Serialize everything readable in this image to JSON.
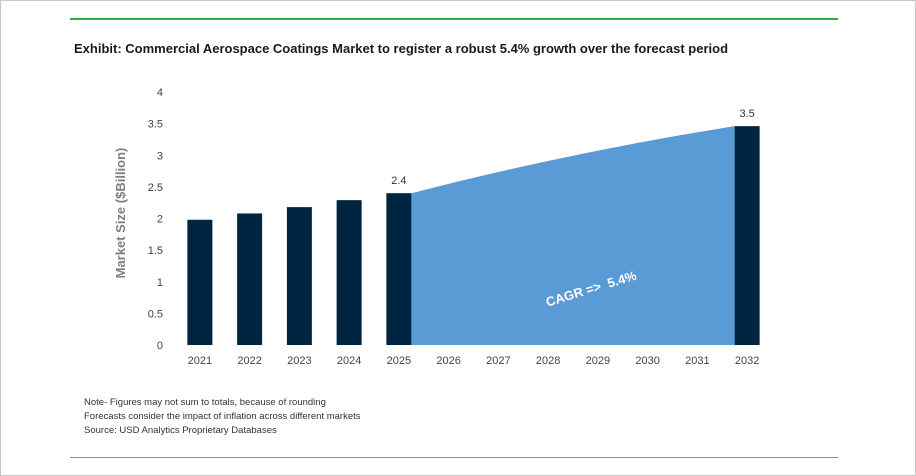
{
  "title": "Exhibit: Commercial Aerospace Coatings Market to register a robust 5.4% growth over the forecast period",
  "notes": [
    "Note- Figures may not sum to totals, because of rounding",
    "Forecasts consider the impact of inflation across different markets",
    "Source: USD Analytics Proprietary Databases"
  ],
  "colors": {
    "bar": "#002541",
    "area": "#5b9bd5",
    "top_rule": "#22b14c"
  },
  "chart_data": {
    "type": "bar",
    "categories": [
      "2021",
      "2022",
      "2023",
      "2024",
      "2025",
      "2026",
      "2027",
      "2028",
      "2029",
      "2030",
      "2031",
      "2032"
    ],
    "values": [
      1.98,
      2.08,
      2.18,
      2.29,
      2.4,
      null,
      null,
      null,
      null,
      null,
      null,
      3.46
    ],
    "data_labels": [
      {
        "category": "2025",
        "text": "2.4"
      },
      {
        "category": "2032",
        "text": "3.5"
      }
    ],
    "forecast_area": {
      "from": "2025",
      "to": "2032",
      "start_value": 2.4,
      "end_value": 3.46,
      "label": "CAGR =>  5.4%"
    },
    "ylabel": "Market Size ($Billion)",
    "xlabel": "",
    "ylim": [
      0,
      4
    ],
    "yticks": [
      "0",
      "0.5",
      "1",
      "1.5",
      "2",
      "2.5",
      "3",
      "3.5",
      "4"
    ],
    "grid": false,
    "legend": "none"
  }
}
